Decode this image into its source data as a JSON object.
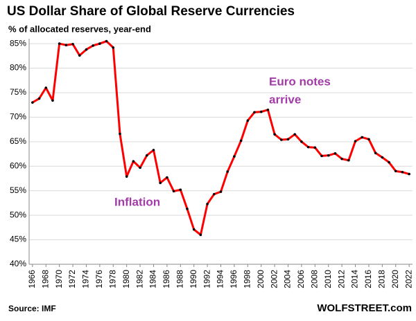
{
  "chart_data": {
    "type": "line",
    "title": "US Dollar Share of Global Reserve Currencies",
    "subtitle": "% of allocated reserves, year-end",
    "source": "Source: IMF",
    "credit": "WOLFSTREET.com",
    "annotations": [
      "Euro notes",
      "arrive",
      "Inflation"
    ],
    "annotation_color": "#a23ba8",
    "x": [
      1966,
      1967,
      1968,
      1969,
      1970,
      1971,
      1972,
      1973,
      1974,
      1975,
      1976,
      1977,
      1978,
      1979,
      1980,
      1981,
      1982,
      1983,
      1984,
      1985,
      1986,
      1987,
      1988,
      1989,
      1990,
      1991,
      1992,
      1993,
      1994,
      1995,
      1996,
      1997,
      1998,
      1999,
      2000,
      2001,
      2002,
      2003,
      2004,
      2005,
      2006,
      2007,
      2008,
      2009,
      2010,
      2011,
      2012,
      2013,
      2014,
      2015,
      2016,
      2017,
      2018,
      2019,
      2020,
      2021,
      2022
    ],
    "series": [
      {
        "name": "US Dollar",
        "color": "#ff0000",
        "marker_color": "#000000",
        "values": [
          73,
          73.8,
          76,
          73.4,
          85,
          84.7,
          84.9,
          82.6,
          83.8,
          84.6,
          85,
          85.5,
          84.2,
          66.6,
          57.9,
          61,
          59.7,
          62.2,
          63.3,
          56.6,
          57.7,
          54.9,
          55.2,
          51.3,
          47.1,
          46,
          52.3,
          54.3,
          54.8,
          58.9,
          62,
          65.2,
          69.3,
          71,
          71.1,
          71.5,
          66.5,
          65.4,
          65.5,
          66.5,
          65,
          63.9,
          63.8,
          62.1,
          62.2,
          62.6,
          61.5,
          61.2,
          65.1,
          65.9,
          65.5,
          62.7,
          61.8,
          60.8,
          59,
          58.8,
          58.4
        ]
      }
    ],
    "xlim": [
      1965.5,
      2022.5
    ],
    "xticks": [
      1966,
      1968,
      1970,
      1972,
      1974,
      1976,
      1978,
      1980,
      1982,
      1984,
      1986,
      1988,
      1990,
      1992,
      1994,
      1996,
      1998,
      2000,
      2002,
      2004,
      2006,
      2008,
      2010,
      2012,
      2014,
      2016,
      2018,
      2020,
      2022
    ],
    "ylim": [
      40,
      86
    ],
    "yticks": [
      {
        "value": 40,
        "label": "40%"
      },
      {
        "value": 45,
        "label": "45%"
      },
      {
        "value": 50,
        "label": "50%"
      },
      {
        "value": 55,
        "label": "55%"
      },
      {
        "value": 60,
        "label": "60%"
      },
      {
        "value": 65,
        "label": "65%"
      },
      {
        "value": 70,
        "label": "70%"
      },
      {
        "value": 75,
        "label": "75%"
      },
      {
        "value": 80,
        "label": "80%"
      },
      {
        "value": 85,
        "label": "85%"
      }
    ],
    "grid": true
  }
}
